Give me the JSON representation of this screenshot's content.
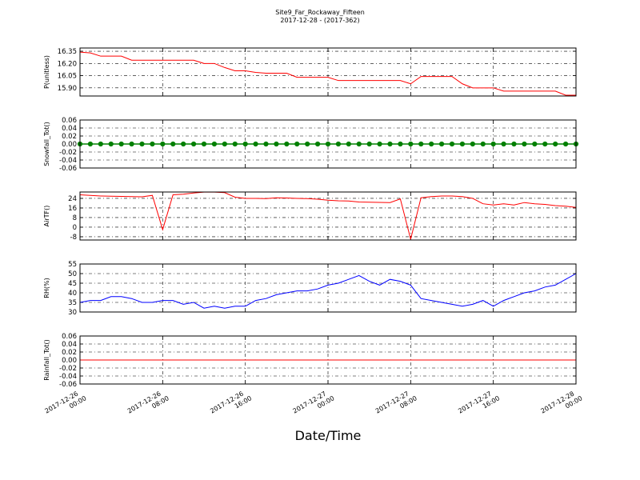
{
  "chart_data": [
    {
      "type": "line",
      "title": "Site9_Far_Rockaway_Fifteen",
      "subtitle": "2017-12-28 - (2017-362)",
      "ylabel": "P(unitless)",
      "xlim": [
        "2017-12-26 00:00",
        "2017-12-28 00:00"
      ],
      "xticks": [
        "2017-12-26 00:00",
        "2017-12-26 08:00",
        "2017-12-26 16:00",
        "2017-12-27 00:00",
        "2017-12-27 08:00",
        "2017-12-27 16:00",
        "2017-12-28 00:00"
      ],
      "ylim": [
        15.8,
        16.39
      ],
      "yticks": [
        {
          "value": 15.9,
          "label": "15.90"
        },
        16.05,
        {
          "value": 16.2,
          "label": "16.20"
        },
        16.35
      ],
      "grid": true,
      "x": [
        "2017-12-26 00:00",
        "2017-12-26 01:00",
        "2017-12-26 02:00",
        "2017-12-26 03:00",
        "2017-12-26 04:00",
        "2017-12-26 05:00",
        "2017-12-26 06:00",
        "2017-12-26 07:00",
        "2017-12-26 08:00",
        "2017-12-26 09:00",
        "2017-12-26 10:00",
        "2017-12-26 11:00",
        "2017-12-26 12:00",
        "2017-12-26 13:00",
        "2017-12-26 14:00",
        "2017-12-26 15:00",
        "2017-12-26 16:00",
        "2017-12-26 17:00",
        "2017-12-26 18:00",
        "2017-12-26 19:00",
        "2017-12-26 20:00",
        "2017-12-26 21:00",
        "2017-12-26 22:00",
        "2017-12-26 23:00",
        "2017-12-27 00:00",
        "2017-12-27 01:00",
        "2017-12-27 02:00",
        "2017-12-27 03:00",
        "2017-12-27 04:00",
        "2017-12-27 05:00",
        "2017-12-27 06:00",
        "2017-12-27 07:00",
        "2017-12-27 08:00",
        "2017-12-27 09:00",
        "2017-12-27 10:00",
        "2017-12-27 11:00",
        "2017-12-27 12:00",
        "2017-12-27 13:00",
        "2017-12-27 14:00",
        "2017-12-27 15:00",
        "2017-12-27 16:00",
        "2017-12-27 17:00",
        "2017-12-27 18:00",
        "2017-12-27 19:00",
        "2017-12-27 20:00",
        "2017-12-27 21:00",
        "2017-12-27 22:00",
        "2017-12-27 23:00",
        "2017-12-28 00:00"
      ],
      "series": [
        {
          "color": "#ff0000",
          "values": [
            16.34,
            16.33,
            16.29,
            16.29,
            16.29,
            16.24,
            16.24,
            16.24,
            16.24,
            16.24,
            16.24,
            16.24,
            16.2,
            16.2,
            16.15,
            16.11,
            16.11,
            16.09,
            16.08,
            16.08,
            16.08,
            16.03,
            16.03,
            16.03,
            16.03,
            15.99,
            15.99,
            15.99,
            15.99,
            15.99,
            15.99,
            15.99,
            15.95,
            16.04,
            16.04,
            16.04,
            16.04,
            15.95,
            15.9,
            15.9,
            15.9,
            15.86,
            15.86,
            15.86,
            15.86,
            15.86,
            15.86,
            15.81,
            15.81
          ]
        }
      ]
    },
    {
      "type": "line",
      "ylabel": "Snowfall_Tot()",
      "marker": true,
      "xlim": [
        "2017-12-26 00:00",
        "2017-12-28 00:00"
      ],
      "xticks": [
        "2017-12-26 00:00",
        "2017-12-26 08:00",
        "2017-12-26 16:00",
        "2017-12-27 00:00",
        "2017-12-27 08:00",
        "2017-12-27 16:00",
        "2017-12-28 00:00"
      ],
      "ylim": [
        -0.06,
        0.06
      ],
      "yticks": [
        -0.06,
        -0.04,
        -0.02,
        {
          "value": 0,
          "label": "0.00"
        },
        0.02,
        0.04,
        0.06
      ],
      "grid": true,
      "x": [
        "2017-12-26 00:00",
        "2017-12-26 01:00",
        "2017-12-26 02:00",
        "2017-12-26 03:00",
        "2017-12-26 04:00",
        "2017-12-26 05:00",
        "2017-12-26 06:00",
        "2017-12-26 07:00",
        "2017-12-26 08:00",
        "2017-12-26 09:00",
        "2017-12-26 10:00",
        "2017-12-26 11:00",
        "2017-12-26 12:00",
        "2017-12-26 13:00",
        "2017-12-26 14:00",
        "2017-12-26 15:00",
        "2017-12-26 16:00",
        "2017-12-26 17:00",
        "2017-12-26 18:00",
        "2017-12-26 19:00",
        "2017-12-26 20:00",
        "2017-12-26 21:00",
        "2017-12-26 22:00",
        "2017-12-26 23:00",
        "2017-12-27 00:00",
        "2017-12-27 01:00",
        "2017-12-27 02:00",
        "2017-12-27 03:00",
        "2017-12-27 04:00",
        "2017-12-27 05:00",
        "2017-12-27 06:00",
        "2017-12-27 07:00",
        "2017-12-27 08:00",
        "2017-12-27 09:00",
        "2017-12-27 10:00",
        "2017-12-27 11:00",
        "2017-12-27 12:00",
        "2017-12-27 13:00",
        "2017-12-27 14:00",
        "2017-12-27 15:00",
        "2017-12-27 16:00",
        "2017-12-27 17:00",
        "2017-12-27 18:00",
        "2017-12-27 19:00",
        "2017-12-27 20:00",
        "2017-12-27 21:00",
        "2017-12-27 22:00",
        "2017-12-27 23:00",
        "2017-12-28 00:00"
      ],
      "series": [
        {
          "color": "#008000",
          "values": [
            0,
            0,
            0,
            0,
            0,
            0,
            0,
            0,
            0,
            0,
            0,
            0,
            0,
            0,
            0,
            0,
            0,
            0,
            0,
            0,
            0,
            0,
            0,
            0,
            0,
            0,
            0,
            0,
            0,
            0,
            0,
            0,
            0,
            0,
            0,
            0,
            0,
            0,
            0,
            0,
            0,
            0,
            0,
            0,
            0,
            0,
            0,
            0,
            0
          ]
        }
      ]
    },
    {
      "type": "line",
      "ylabel": "AirTF()",
      "xlim": [
        "2017-12-26 00:00",
        "2017-12-28 00:00"
      ],
      "xticks": [
        "2017-12-26 00:00",
        "2017-12-26 08:00",
        "2017-12-26 16:00",
        "2017-12-27 00:00",
        "2017-12-27 08:00",
        "2017-12-27 16:00",
        "2017-12-28 00:00"
      ],
      "ylim": [
        -10.7,
        29.3
      ],
      "yticks": [
        -8,
        0,
        8,
        16,
        24
      ],
      "grid": true,
      "x": [
        "2017-12-26 00:00",
        "2017-12-26 01:00",
        "2017-12-26 02:00",
        "2017-12-26 03:00",
        "2017-12-26 04:00",
        "2017-12-26 05:00",
        "2017-12-26 06:00",
        "2017-12-26 07:00",
        "2017-12-26 08:00",
        "2017-12-26 09:00",
        "2017-12-26 10:00",
        "2017-12-26 11:00",
        "2017-12-26 12:00",
        "2017-12-26 13:00",
        "2017-12-26 14:00",
        "2017-12-26 15:00",
        "2017-12-26 16:00",
        "2017-12-26 17:00",
        "2017-12-26 18:00",
        "2017-12-26 19:00",
        "2017-12-26 20:00",
        "2017-12-26 21:00",
        "2017-12-26 22:00",
        "2017-12-26 23:00",
        "2017-12-27 00:00",
        "2017-12-27 01:00",
        "2017-12-27 02:00",
        "2017-12-27 03:00",
        "2017-12-27 04:00",
        "2017-12-27 05:00",
        "2017-12-27 06:00",
        "2017-12-27 07:00",
        "2017-12-27 08:00",
        "2017-12-27 09:00",
        "2017-12-27 10:00",
        "2017-12-27 11:00",
        "2017-12-27 12:00",
        "2017-12-27 13:00",
        "2017-12-27 14:00",
        "2017-12-27 15:00",
        "2017-12-27 16:00",
        "2017-12-27 17:00",
        "2017-12-27 18:00",
        "2017-12-27 19:00",
        "2017-12-27 20:00",
        "2017-12-27 21:00",
        "2017-12-27 22:00",
        "2017-12-27 23:00",
        "2017-12-28 00:00"
      ],
      "series": [
        {
          "color": "#ff0000",
          "values": [
            27,
            26.5,
            26,
            25.8,
            25.6,
            25.5,
            25.3,
            26.5,
            -2,
            27,
            27.5,
            28.5,
            29.2,
            29.2,
            28.8,
            25,
            24,
            24,
            23.8,
            24.5,
            24.3,
            24,
            23.8,
            23.3,
            22.5,
            22,
            21.8,
            21,
            20.8,
            20.6,
            20.5,
            23.5,
            -10,
            24.5,
            25.5,
            26,
            26,
            25.5,
            24,
            19.5,
            18.5,
            19.5,
            18.5,
            20.5,
            19.5,
            19,
            18,
            17.5,
            16.5
          ]
        }
      ]
    },
    {
      "type": "line",
      "ylabel": "RH(%)",
      "xlim": [
        "2017-12-26 00:00",
        "2017-12-28 00:00"
      ],
      "xticks": [
        "2017-12-26 00:00",
        "2017-12-26 08:00",
        "2017-12-26 16:00",
        "2017-12-27 00:00",
        "2017-12-27 08:00",
        "2017-12-27 16:00",
        "2017-12-28 00:00"
      ],
      "ylim": [
        30,
        55
      ],
      "yticks": [
        30,
        35,
        40,
        45,
        50,
        55
      ],
      "grid": true,
      "x": [
        "2017-12-26 00:00",
        "2017-12-26 01:00",
        "2017-12-26 02:00",
        "2017-12-26 03:00",
        "2017-12-26 04:00",
        "2017-12-26 05:00",
        "2017-12-26 06:00",
        "2017-12-26 07:00",
        "2017-12-26 08:00",
        "2017-12-26 09:00",
        "2017-12-26 10:00",
        "2017-12-26 11:00",
        "2017-12-26 12:00",
        "2017-12-26 13:00",
        "2017-12-26 14:00",
        "2017-12-26 15:00",
        "2017-12-26 16:00",
        "2017-12-26 17:00",
        "2017-12-26 18:00",
        "2017-12-26 19:00",
        "2017-12-26 20:00",
        "2017-12-26 21:00",
        "2017-12-26 22:00",
        "2017-12-26 23:00",
        "2017-12-27 00:00",
        "2017-12-27 01:00",
        "2017-12-27 02:00",
        "2017-12-27 03:00",
        "2017-12-27 04:00",
        "2017-12-27 05:00",
        "2017-12-27 06:00",
        "2017-12-27 07:00",
        "2017-12-27 08:00",
        "2017-12-27 09:00",
        "2017-12-27 10:00",
        "2017-12-27 11:00",
        "2017-12-27 12:00",
        "2017-12-27 13:00",
        "2017-12-27 14:00",
        "2017-12-27 15:00",
        "2017-12-27 16:00",
        "2017-12-27 17:00",
        "2017-12-27 18:00",
        "2017-12-27 19:00",
        "2017-12-27 20:00",
        "2017-12-27 21:00",
        "2017-12-27 22:00",
        "2017-12-27 23:00",
        "2017-12-28 00:00"
      ],
      "series": [
        {
          "color": "#0000ff",
          "values": [
            35,
            36,
            36,
            38,
            38,
            37,
            35,
            35,
            36,
            36,
            34,
            35,
            32,
            33,
            32,
            33,
            33,
            36,
            37,
            39,
            40,
            41,
            41,
            42,
            44,
            45,
            47,
            49,
            46,
            44,
            47,
            46,
            44,
            37,
            36,
            35,
            34,
            33,
            34,
            36,
            33,
            36,
            38,
            40,
            41,
            43,
            44,
            47,
            50
          ]
        }
      ]
    },
    {
      "type": "line",
      "ylabel": "Rainfall_Tot()",
      "xlabel": "Date/Time",
      "xlim": [
        "2017-12-26 00:00",
        "2017-12-28 00:00"
      ],
      "xticks": [
        {
          "value": "2017-12-26 00:00",
          "label": [
            "2017-12-26",
            "00:00"
          ]
        },
        {
          "value": "2017-12-26 08:00",
          "label": [
            "2017-12-26",
            "08:00"
          ]
        },
        {
          "value": "2017-12-26 16:00",
          "label": [
            "2017-12-26",
            "16:00"
          ]
        },
        {
          "value": "2017-12-27 00:00",
          "label": [
            "2017-12-27",
            "00:00"
          ]
        },
        {
          "value": "2017-12-27 08:00",
          "label": [
            "2017-12-27",
            "08:00"
          ]
        },
        {
          "value": "2017-12-27 16:00",
          "label": [
            "2017-12-27",
            "16:00"
          ]
        },
        {
          "value": "2017-12-28 00:00",
          "label": [
            "2017-12-28",
            "00:00"
          ]
        }
      ],
      "ylim": [
        -0.06,
        0.06
      ],
      "yticks": [
        -0.06,
        -0.04,
        -0.02,
        {
          "value": 0,
          "label": "0.00"
        },
        0.02,
        0.04,
        0.06
      ],
      "grid": true,
      "x": [
        "2017-12-26 00:00",
        "2017-12-26 01:00",
        "2017-12-26 02:00",
        "2017-12-26 03:00",
        "2017-12-26 04:00",
        "2017-12-26 05:00",
        "2017-12-26 06:00",
        "2017-12-26 07:00",
        "2017-12-26 08:00",
        "2017-12-26 09:00",
        "2017-12-26 10:00",
        "2017-12-26 11:00",
        "2017-12-26 12:00",
        "2017-12-26 13:00",
        "2017-12-26 14:00",
        "2017-12-26 15:00",
        "2017-12-26 16:00",
        "2017-12-26 17:00",
        "2017-12-26 18:00",
        "2017-12-26 19:00",
        "2017-12-26 20:00",
        "2017-12-26 21:00",
        "2017-12-26 22:00",
        "2017-12-26 23:00",
        "2017-12-27 00:00",
        "2017-12-27 01:00",
        "2017-12-27 02:00",
        "2017-12-27 03:00",
        "2017-12-27 04:00",
        "2017-12-27 05:00",
        "2017-12-27 06:00",
        "2017-12-27 07:00",
        "2017-12-27 08:00",
        "2017-12-27 09:00",
        "2017-12-27 10:00",
        "2017-12-27 11:00",
        "2017-12-27 12:00",
        "2017-12-27 13:00",
        "2017-12-27 14:00",
        "2017-12-27 15:00",
        "2017-12-27 16:00",
        "2017-12-27 17:00",
        "2017-12-27 18:00",
        "2017-12-27 19:00",
        "2017-12-27 20:00",
        "2017-12-27 21:00",
        "2017-12-27 22:00",
        "2017-12-27 23:00",
        "2017-12-28 00:00"
      ],
      "series": [
        {
          "color": "#ff0000",
          "values": [
            0,
            0,
            0,
            0,
            0,
            0,
            0,
            0,
            0,
            0,
            0,
            0,
            0,
            0,
            0,
            0,
            0,
            0,
            0,
            0,
            0,
            0,
            0,
            0,
            0,
            0,
            0,
            0,
            0,
            0,
            0,
            0,
            0,
            0,
            0,
            0,
            0,
            0,
            0,
            0,
            0,
            0,
            0,
            0,
            0,
            0,
            0,
            0,
            0
          ]
        }
      ]
    }
  ]
}
